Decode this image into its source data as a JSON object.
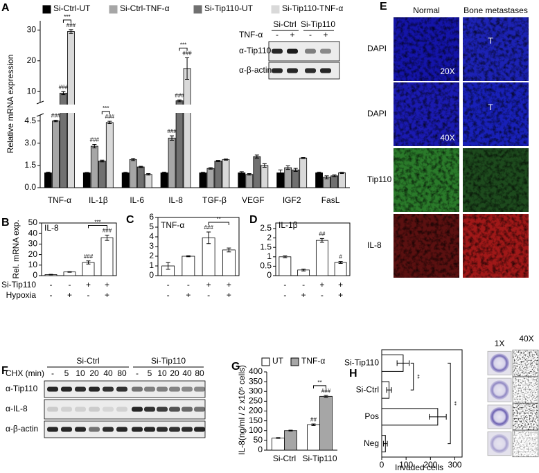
{
  "panel_labels": [
    "A",
    "B",
    "C",
    "D",
    "E",
    "F",
    "G",
    "H"
  ],
  "chart_data": [
    {
      "type": "bar",
      "y_label": "Relative mRNA expression",
      "categories": [
        "TNF-α",
        "IL-1β",
        "IL-6",
        "IL-8",
        "TGF-β",
        "VEGF",
        "IGF2",
        "FasL"
      ],
      "series": [
        {
          "name": "Si-Ctrl-UT",
          "color": "#000000",
          "values": [
            1,
            1,
            1,
            1,
            1,
            1,
            1,
            1
          ],
          "errors": [
            0.05,
            0.03,
            0.04,
            0.05,
            0.04,
            0.08,
            0.2,
            0.05
          ]
        },
        {
          "name": "Si-Ctrl-TNF-α",
          "color": "#a6a6a6",
          "values": [
            4.5,
            2.8,
            1.9,
            3.35,
            1.3,
            0.9,
            1.35,
            0.7
          ],
          "errors": [
            0.05,
            0.12,
            0.07,
            0.15,
            0.05,
            0.05,
            0.12,
            0.1
          ],
          "significance": [
            "###",
            "###",
            null,
            "###",
            null,
            null,
            null,
            null
          ]
        },
        {
          "name": "Si-Tip110-UT",
          "color": "#707070",
          "values": [
            9.5,
            1.8,
            1.4,
            7,
            1.8,
            2.1,
            1.2,
            0.8
          ],
          "errors": [
            0.5,
            0.06,
            0.04,
            0.3,
            0.04,
            0.1,
            0.1,
            0.06
          ],
          "significance": [
            "###",
            null,
            null,
            "###",
            null,
            null,
            null,
            null
          ]
        },
        {
          "name": "Si-Tip110-TNF-α",
          "color": "#d9d9d9",
          "values": [
            29.5,
            4.4,
            0.9,
            17.5,
            1.9,
            1.5,
            2.0,
            1.0
          ],
          "errors": [
            0.6,
            0.08,
            0.05,
            3.5,
            0.04,
            0.12,
            0.03,
            0.04
          ],
          "significance": [
            "###",
            "###",
            null,
            "###",
            null,
            null,
            null,
            null
          ]
        }
      ],
      "brackets": [
        "***",
        "***",
        null,
        "***",
        null,
        null,
        null,
        null
      ],
      "ylim": [
        0,
        33
      ],
      "y_break": [
        5,
        6
      ],
      "yticks": [
        {
          "value": 0,
          "label": "0.0"
        },
        1.5,
        {
          "value": 3,
          "label": "3.0"
        },
        4.5,
        10,
        20,
        30
      ],
      "legend": "top"
    },
    {
      "type": "bar",
      "title": "IL-8",
      "y_label": "Rel. mRNA exp.",
      "color": "#ffffff",
      "values": [
        1,
        3.5,
        12.5,
        36
      ],
      "errors": [
        0.2,
        0.3,
        1.5,
        2.5
      ],
      "significance": [
        null,
        null,
        "###",
        "###"
      ],
      "comparisons": [
        {
          "from": 2,
          "to": 3,
          "label": "***"
        }
      ],
      "condition_rows": [
        {
          "name": "Si-Tip110",
          "values": [
            "-",
            "-",
            "+",
            "+"
          ]
        },
        {
          "name": "Hypoxia",
          "values": [
            "-",
            "+",
            "-",
            "+"
          ]
        }
      ],
      "ylim": [
        0,
        50
      ],
      "yticks": [
        0,
        10,
        20,
        30,
        40,
        50
      ]
    },
    {
      "type": "bar",
      "title": "TNF-α",
      "color": "#ffffff",
      "values": [
        1,
        2,
        3.9,
        2.65
      ],
      "errors": [
        0.35,
        0.05,
        0.6,
        0.2
      ],
      "significance": [
        null,
        null,
        "###",
        null
      ],
      "comparisons": [
        {
          "from": 2,
          "to": 3,
          "label": "**"
        }
      ],
      "condition_rows": [
        {
          "values": [
            "-",
            "-",
            "+",
            "+"
          ]
        },
        {
          "values": [
            "-",
            "+",
            "-",
            "+"
          ]
        }
      ],
      "ylim": [
        0,
        6
      ],
      "yticks": [
        0,
        1,
        2,
        3,
        4,
        5,
        6
      ]
    },
    {
      "type": "bar",
      "title": "IL-1β",
      "color": "#ffffff",
      "values": [
        1,
        0.3,
        1.87,
        0.7
      ],
      "errors": [
        0.05,
        0.05,
        0.1,
        0.05
      ],
      "significance": [
        null,
        null,
        "##",
        "#"
      ],
      "condition_rows": [
        {
          "values": [
            "-",
            "-",
            "+",
            "+"
          ]
        },
        {
          "values": [
            "-",
            "+",
            "-",
            "+"
          ]
        }
      ],
      "ylim": [
        0,
        2.5
      ],
      "yticks": [
        0,
        0.5,
        1,
        1.5,
        2,
        2.5
      ]
    },
    {
      "type": "bar",
      "y_label": "IL-8(ng/ml / 2 x10⁵ cells)",
      "categories": [
        "Si-Ctrl",
        "Si-Tip110"
      ],
      "series": [
        {
          "name": "UT",
          "color": "#ffffff",
          "values": [
            62,
            130
          ],
          "errors": [
            2,
            4
          ],
          "significance": [
            null,
            "##"
          ]
        },
        {
          "name": "TNF-α",
          "color": "#a6a6a6",
          "values": [
            100,
            275
          ],
          "errors": [
            2,
            5
          ],
          "significance": [
            null,
            "###"
          ]
        }
      ],
      "brackets": [
        null,
        "**"
      ],
      "ylim": [
        0,
        400
      ],
      "yticks": [
        0,
        50,
        100,
        150,
        200,
        250,
        300,
        350,
        400
      ],
      "legend": "top"
    },
    {
      "type": "bar",
      "orientation": "horizontal",
      "x_label": "Invaded cells",
      "color": "#ffffff",
      "categories": [
        "Si-Tip110",
        "Si-Ctrl",
        "Pos",
        "Neg"
      ],
      "values": [
        88,
        30,
        230,
        15
      ],
      "errors": [
        25,
        10,
        35,
        8
      ],
      "comparisons": [
        {
          "from": 0,
          "to": 1,
          "label": "**"
        },
        {
          "from": 0,
          "to": 3,
          "label": "**"
        }
      ],
      "xlim": [
        0,
        330
      ],
      "xticks": [
        0,
        100,
        200,
        300
      ]
    }
  ],
  "blot_a": {
    "groups": [
      "Si-Ctrl",
      "Si-Tip110"
    ],
    "treatment": "TNF-α",
    "lanes": [
      "-",
      "+",
      "-",
      "+"
    ],
    "rows": [
      "α-Tip110",
      "α-β-actin"
    ]
  },
  "images_e": {
    "columns": [
      "Normal",
      "Bone metastases"
    ],
    "rows": [
      "DAPI",
      "DAPI",
      "Tip110",
      "IL-8"
    ],
    "overlays": [
      "20X",
      "T",
      "40X",
      "T"
    ]
  },
  "blot_f": {
    "groups": [
      "Si-Ctrl",
      "Si-Tip110"
    ],
    "treatment": "CHX (min)",
    "lanes": [
      "-",
      "5",
      "10",
      "20",
      "40",
      "80",
      "-",
      "5",
      "10",
      "20",
      "40",
      "80"
    ],
    "rows": [
      "α-Tip110",
      "α-IL-8",
      "α-β-actin"
    ]
  },
  "images_h": {
    "columns": [
      "1X",
      "40X"
    ]
  }
}
